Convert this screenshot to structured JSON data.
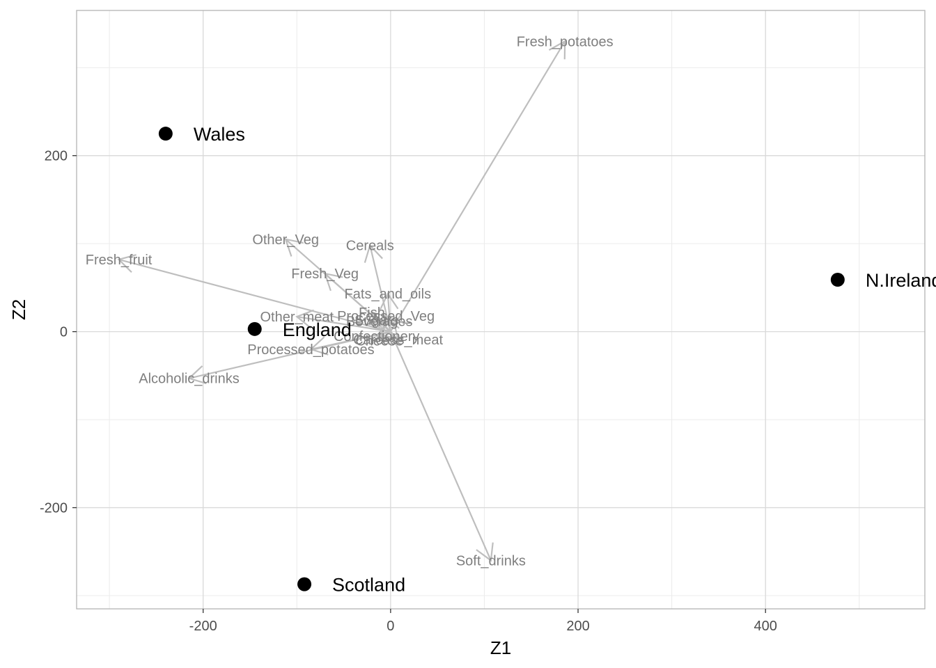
{
  "chart_data": {
    "type": "scatter",
    "title": "",
    "xlabel": "Z1",
    "ylabel": "Z2",
    "xlim": [
      -335,
      570
    ],
    "ylim": [
      -315,
      365
    ],
    "x_ticks": [
      -200,
      0,
      200,
      400
    ],
    "y_ticks": [
      -200,
      0,
      200
    ],
    "x_minor_ticks": [
      -300,
      -100,
      100,
      300,
      500
    ],
    "y_minor_ticks": [
      -300,
      -100,
      100,
      300
    ],
    "grid": true,
    "legend": "none",
    "colors": {
      "points": "#000000",
      "arrows": "#bebebe",
      "loading_labels": "#7f7f7f",
      "grid": "#d9d9d9",
      "panel_border": "#b3b3b3"
    },
    "points": [
      {
        "label": "Wales",
        "x": -240,
        "y": 225
      },
      {
        "label": "England",
        "x": -145,
        "y": 3
      },
      {
        "label": "Scotland",
        "x": -92,
        "y": -287
      },
      {
        "label": "N.Ireland",
        "x": 477,
        "y": 59
      }
    ],
    "loadings": [
      {
        "label": "Fresh_potatoes",
        "x": 186,
        "y": 330
      },
      {
        "label": "Soft_drinks",
        "x": 107,
        "y": -260
      },
      {
        "label": "Fresh_fruit",
        "x": -290,
        "y": 82
      },
      {
        "label": "Alcoholic_drinks",
        "x": -215,
        "y": -53
      },
      {
        "label": "Other_Veg",
        "x": -112,
        "y": 105
      },
      {
        "label": "Cereals",
        "x": -22,
        "y": 98
      },
      {
        "label": "Fresh_Veg",
        "x": -70,
        "y": 66
      },
      {
        "label": "Fats_and_oils",
        "x": -3,
        "y": 43
      },
      {
        "label": "Other_meat",
        "x": -100,
        "y": 17
      },
      {
        "label": "Processed_Veg",
        "x": -5,
        "y": 18
      },
      {
        "label": "Fish",
        "x": -20,
        "y": 22
      },
      {
        "label": "Sugars",
        "x": -15,
        "y": 13
      },
      {
        "label": "Beverages",
        "x": -12,
        "y": 12
      },
      {
        "label": "Confectionery",
        "x": -15,
        "y": -5
      },
      {
        "label": "Cheese",
        "x": -12,
        "y": -10
      },
      {
        "label": "Carcass_meat",
        "x": 8,
        "y": -9
      },
      {
        "label": "Processed_potatoes",
        "x": -85,
        "y": -20
      }
    ]
  }
}
